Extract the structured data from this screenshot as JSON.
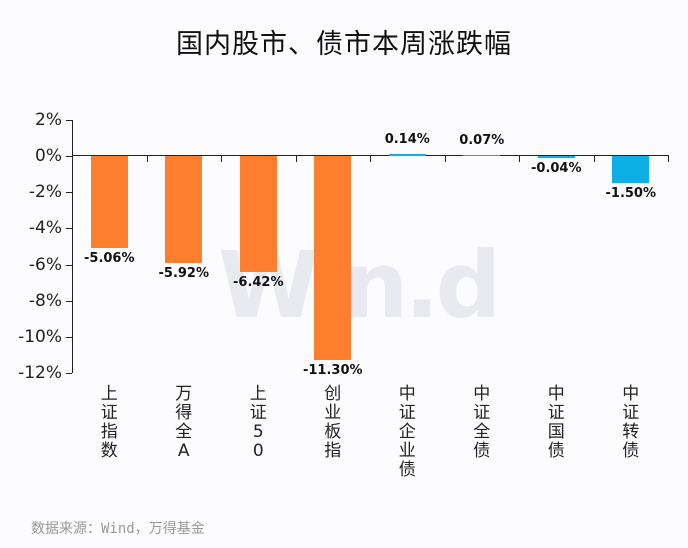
{
  "title": "国内股市、债市本周涨跌幅",
  "watermark": "Win.d",
  "source": "数据来源：Wind，万得基金",
  "colors": {
    "stock": "#fd7f2e",
    "bond": "#0eaee6",
    "axis": "#222222"
  },
  "chart_data": {
    "type": "bar",
    "title": "国内股市、债市本周涨跌幅",
    "xlabel": "",
    "ylabel": "",
    "ylim": [
      -12,
      2
    ],
    "yticks": [
      "2%",
      "0%",
      "-2%",
      "-4%",
      "-6%",
      "-8%",
      "-10%",
      "-12%"
    ],
    "grid": false,
    "categories": [
      "上证指数",
      "万得全A",
      "上证50",
      "创业板指",
      "中证企业债",
      "中证全债",
      "中证国债",
      "中证转债"
    ],
    "values": [
      -5.06,
      -5.92,
      -6.42,
      -11.3,
      0.14,
      0.07,
      -0.04,
      -1.5
    ],
    "labels": [
      "-5.06%",
      "-5.92%",
      "-6.42%",
      "-11.30%",
      "0.14%",
      "0.07%",
      "-0.04%",
      "-1.50%"
    ],
    "groups": [
      "stock",
      "stock",
      "stock",
      "stock",
      "bond",
      "bond",
      "bond",
      "bond"
    ],
    "source": "数据来源：Wind，万得基金"
  }
}
